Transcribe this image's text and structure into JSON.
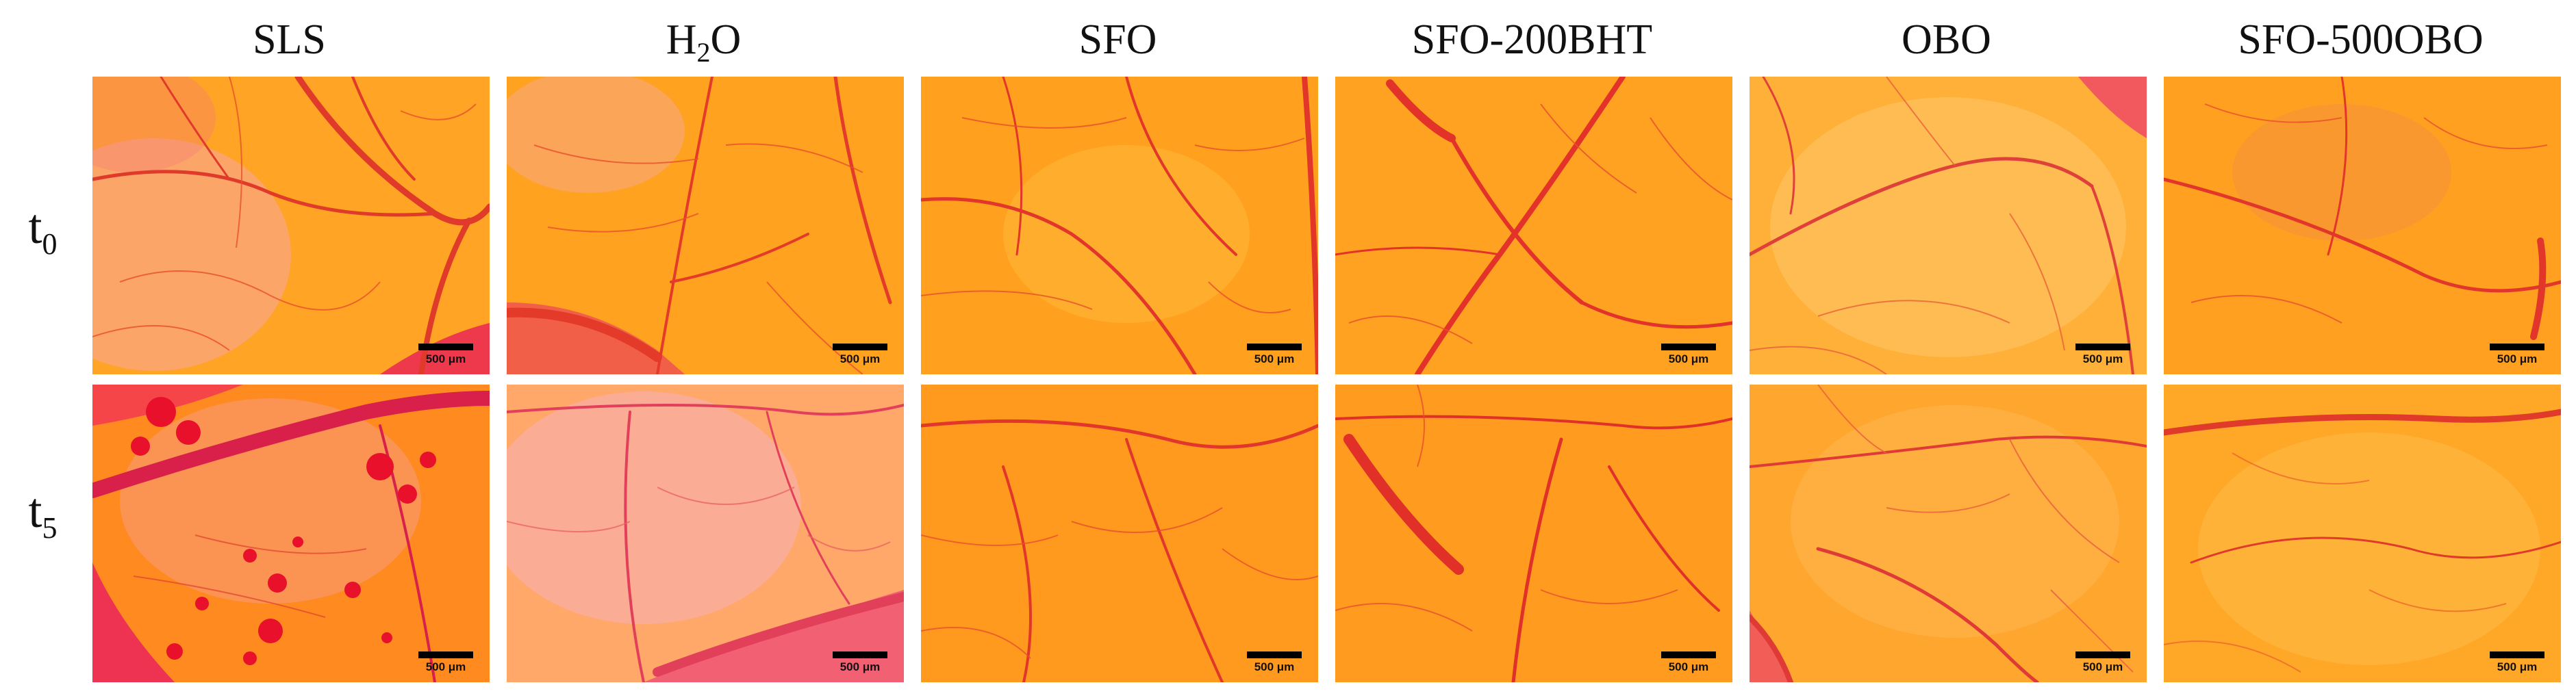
{
  "figure": {
    "columns": [
      {
        "label": "SLS"
      },
      {
        "label": "H",
        "sub": "2",
        "suffix": "O"
      },
      {
        "label": "SFO"
      },
      {
        "label": "SFO-200BHT"
      },
      {
        "label": "OBO"
      },
      {
        "label": "SFO-500OBO"
      }
    ],
    "rows": [
      {
        "label": "t",
        "sub": "0"
      },
      {
        "label": "t",
        "sub": "5"
      }
    ],
    "scale_bar_label": "500 μm",
    "colors": {
      "background_orange": "#ffa320",
      "vessel_red": "#e8322a",
      "hemorrhage_red": "#e8103a",
      "pink_tint": "#f2607a"
    }
  }
}
